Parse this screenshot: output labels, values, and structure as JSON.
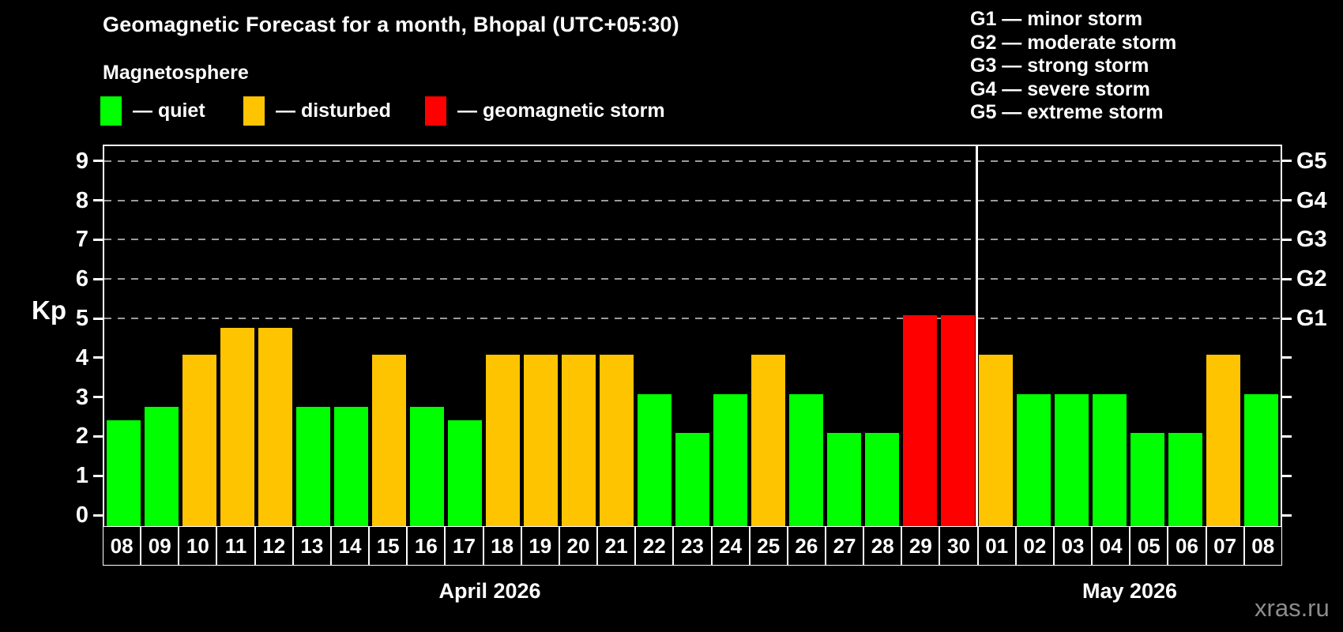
{
  "header": {
    "title": "Geomagnetic Forecast for a month, Bhopal (UTC+05:30)",
    "subtitle": "Magnetosphere",
    "legend": [
      {
        "key": "quiet",
        "label": "— quiet",
        "color": "#00ff00"
      },
      {
        "key": "disturbed",
        "label": "— disturbed",
        "color": "#ffc400"
      },
      {
        "key": "storm",
        "label": "— geomagnetic storm",
        "color": "#ff0000"
      }
    ],
    "g_scale": [
      {
        "code": "G1",
        "label": "G1 — minor storm"
      },
      {
        "code": "G2",
        "label": "G2 — moderate storm"
      },
      {
        "code": "G3",
        "label": "G3 — strong storm"
      },
      {
        "code": "G4",
        "label": "G4 — severe storm"
      },
      {
        "code": "G5",
        "label": "G5 — extreme storm"
      }
    ]
  },
  "chart_data": {
    "type": "bar",
    "title": "Geomagnetic Forecast for a month, Bhopal (UTC+05:30)",
    "ylabel": "Kp",
    "ylim": [
      0,
      9
    ],
    "grid": "horizontal dashed lines at Kp 5,6,7,8,9",
    "legend_position": "top",
    "left_ticks": [
      0,
      1,
      2,
      3,
      4,
      5,
      6,
      7,
      8,
      9
    ],
    "right_axis_labels": [
      {
        "text": "G1",
        "kp": 5
      },
      {
        "text": "G2",
        "kp": 6
      },
      {
        "text": "G3",
        "kp": 7
      },
      {
        "text": "G4",
        "kp": 8
      },
      {
        "text": "G5",
        "kp": 9
      }
    ],
    "status_colors": {
      "quiet": "#00ff00",
      "disturbed": "#ffc400",
      "storm": "#ff0000"
    },
    "grid_color": "#9b9b9b",
    "month_labels": [
      {
        "text": "April 2026"
      },
      {
        "text": "May 2026"
      }
    ],
    "bars": [
      {
        "day": "08",
        "month": "April 2026",
        "kp": 2.33,
        "status": "quiet"
      },
      {
        "day": "09",
        "month": "April 2026",
        "kp": 2.67,
        "status": "quiet"
      },
      {
        "day": "10",
        "month": "April 2026",
        "kp": 4.0,
        "status": "disturbed"
      },
      {
        "day": "11",
        "month": "April 2026",
        "kp": 4.67,
        "status": "disturbed"
      },
      {
        "day": "12",
        "month": "April 2026",
        "kp": 4.67,
        "status": "disturbed"
      },
      {
        "day": "13",
        "month": "April 2026",
        "kp": 2.67,
        "status": "quiet"
      },
      {
        "day": "14",
        "month": "April 2026",
        "kp": 2.67,
        "status": "quiet"
      },
      {
        "day": "15",
        "month": "April 2026",
        "kp": 4.0,
        "status": "disturbed"
      },
      {
        "day": "16",
        "month": "April 2026",
        "kp": 2.67,
        "status": "quiet"
      },
      {
        "day": "17",
        "month": "April 2026",
        "kp": 2.33,
        "status": "quiet"
      },
      {
        "day": "18",
        "month": "April 2026",
        "kp": 4.0,
        "status": "disturbed"
      },
      {
        "day": "19",
        "month": "April 2026",
        "kp": 4.0,
        "status": "disturbed"
      },
      {
        "day": "20",
        "month": "April 2026",
        "kp": 4.0,
        "status": "disturbed"
      },
      {
        "day": "21",
        "month": "April 2026",
        "kp": 4.0,
        "status": "disturbed"
      },
      {
        "day": "22",
        "month": "April 2026",
        "kp": 3.0,
        "status": "quiet"
      },
      {
        "day": "23",
        "month": "April 2026",
        "kp": 2.0,
        "status": "quiet"
      },
      {
        "day": "24",
        "month": "April 2026",
        "kp": 3.0,
        "status": "quiet"
      },
      {
        "day": "25",
        "month": "April 2026",
        "kp": 4.0,
        "status": "disturbed"
      },
      {
        "day": "26",
        "month": "April 2026",
        "kp": 3.0,
        "status": "quiet"
      },
      {
        "day": "27",
        "month": "April 2026",
        "kp": 2.0,
        "status": "quiet"
      },
      {
        "day": "28",
        "month": "April 2026",
        "kp": 2.0,
        "status": "quiet"
      },
      {
        "day": "29",
        "month": "April 2026",
        "kp": 5.0,
        "status": "storm"
      },
      {
        "day": "30",
        "month": "April 2026",
        "kp": 5.0,
        "status": "storm"
      },
      {
        "day": "01",
        "month": "May 2026",
        "kp": 4.0,
        "status": "disturbed"
      },
      {
        "day": "02",
        "month": "May 2026",
        "kp": 3.0,
        "status": "quiet"
      },
      {
        "day": "03",
        "month": "May 2026",
        "kp": 3.0,
        "status": "quiet"
      },
      {
        "day": "04",
        "month": "May 2026",
        "kp": 3.0,
        "status": "quiet"
      },
      {
        "day": "05",
        "month": "May 2026",
        "kp": 2.0,
        "status": "quiet"
      },
      {
        "day": "06",
        "month": "May 2026",
        "kp": 2.0,
        "status": "quiet"
      },
      {
        "day": "07",
        "month": "May 2026",
        "kp": 4.0,
        "status": "disturbed"
      },
      {
        "day": "08",
        "month": "May 2026",
        "kp": 3.0,
        "status": "quiet"
      }
    ]
  },
  "footer": {
    "watermark": "xras.ru"
  }
}
